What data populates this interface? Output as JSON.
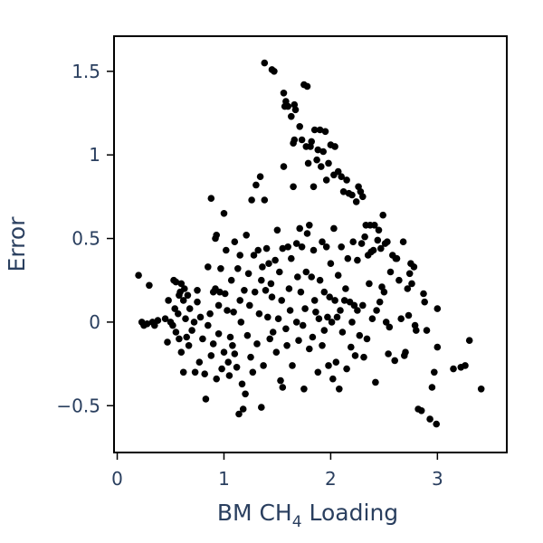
{
  "chart_data": {
    "type": "scatter",
    "title": "",
    "xlabel": "BM CH",
    "xlabel_subscript": "4",
    "xlabel_suffix": " Loading",
    "ylabel": "Error",
    "xlim": [
      -0.03,
      3.65
    ],
    "ylim": [
      -0.78,
      1.71
    ],
    "xticks": [
      0,
      1,
      2,
      3
    ],
    "xtick_labels": [
      "0",
      "1",
      "2",
      "3"
    ],
    "yticks": [
      -0.5,
      0,
      0.5,
      1,
      1.5
    ],
    "ytick_labels": [
      "−0.5",
      "0",
      "0.5",
      "1",
      "1.5"
    ],
    "grid": false,
    "marker_color": "#000000",
    "points": [
      [
        0.2,
        0.28
      ],
      [
        0.23,
        0.0
      ],
      [
        0.25,
        -0.02
      ],
      [
        0.28,
        -0.01
      ],
      [
        0.3,
        0.22
      ],
      [
        0.33,
        0.0
      ],
      [
        0.35,
        -0.02
      ],
      [
        0.38,
        0.01
      ],
      [
        0.45,
        0.02
      ],
      [
        0.47,
        -0.12
      ],
      [
        0.48,
        0.13
      ],
      [
        0.5,
        0.0
      ],
      [
        0.52,
        -0.02
      ],
      [
        0.53,
        0.25
      ],
      [
        0.54,
        0.08
      ],
      [
        0.55,
        0.24
      ],
      [
        0.55,
        -0.06
      ],
      [
        0.57,
        0.05
      ],
      [
        0.58,
        -0.1
      ],
      [
        0.58,
        0.16
      ],
      [
        0.59,
        0.18
      ],
      [
        0.6,
        0.23
      ],
      [
        0.6,
        -0.18
      ],
      [
        0.62,
        0.13
      ],
      [
        0.62,
        -0.3
      ],
      [
        0.63,
        0.2
      ],
      [
        0.64,
        0.02
      ],
      [
        0.65,
        -0.09
      ],
      [
        0.66,
        0.16
      ],
      [
        0.67,
        -0.14
      ],
      [
        0.68,
        0.08
      ],
      [
        0.7,
        -0.05
      ],
      [
        0.72,
        0.0
      ],
      [
        0.73,
        -0.3
      ],
      [
        0.75,
        0.12
      ],
      [
        0.75,
        0.19
      ],
      [
        0.77,
        -0.24
      ],
      [
        0.78,
        0.03
      ],
      [
        0.8,
        -0.1
      ],
      [
        0.82,
        -0.31
      ],
      [
        0.83,
        -0.46
      ],
      [
        0.85,
        0.33
      ],
      [
        0.85,
        -0.02
      ],
      [
        0.87,
        0.05
      ],
      [
        0.88,
        0.74
      ],
      [
        0.88,
        -0.2
      ],
      [
        0.9,
        0.18
      ],
      [
        0.9,
        -0.13
      ],
      [
        0.92,
        0.5
      ],
      [
        0.92,
        0.2
      ],
      [
        0.93,
        0.52
      ],
      [
        0.93,
        -0.34
      ],
      [
        0.95,
        0.1
      ],
      [
        0.95,
        -0.07
      ],
      [
        0.96,
        0.18
      ],
      [
        0.97,
        0.32
      ],
      [
        0.98,
        -0.28
      ],
      [
        1.0,
        -0.18
      ],
      [
        1.0,
        0.65
      ],
      [
        1.01,
        0.17
      ],
      [
        1.02,
        0.43
      ],
      [
        1.03,
        0.07
      ],
      [
        1.04,
        -0.24
      ],
      [
        1.05,
        -0.32
      ],
      [
        1.06,
        -0.09
      ],
      [
        1.07,
        0.25
      ],
      [
        1.08,
        -0.14
      ],
      [
        1.09,
        0.06
      ],
      [
        1.1,
        -0.19
      ],
      [
        1.1,
        0.48
      ],
      [
        1.12,
        -0.27
      ],
      [
        1.13,
        0.32
      ],
      [
        1.14,
        -0.55
      ],
      [
        1.15,
        0.4
      ],
      [
        1.15,
        0.13
      ],
      [
        1.16,
        0.0
      ],
      [
        1.17,
        -0.37
      ],
      [
        1.18,
        -0.52
      ],
      [
        1.19,
        0.19
      ],
      [
        1.2,
        -0.43
      ],
      [
        1.21,
        0.52
      ],
      [
        1.22,
        -0.08
      ],
      [
        1.23,
        0.29
      ],
      [
        1.24,
        0.1
      ],
      [
        1.25,
        -0.21
      ],
      [
        1.26,
        0.73
      ],
      [
        1.27,
        -0.3
      ],
      [
        1.28,
        0.4
      ],
      [
        1.29,
        0.18
      ],
      [
        1.3,
        0.82
      ],
      [
        1.31,
        -0.13
      ],
      [
        1.32,
        0.43
      ],
      [
        1.33,
        0.05
      ],
      [
        1.34,
        0.87
      ],
      [
        1.35,
        0.25
      ],
      [
        1.35,
        -0.51
      ],
      [
        1.36,
        0.33
      ],
      [
        1.37,
        -0.26
      ],
      [
        1.38,
        1.55
      ],
      [
        1.38,
        0.73
      ],
      [
        1.39,
        0.19
      ],
      [
        1.4,
        0.44
      ],
      [
        1.41,
        0.03
      ],
      [
        1.42,
        0.35
      ],
      [
        1.43,
        -0.1
      ],
      [
        1.44,
        0.23
      ],
      [
        1.45,
        1.51
      ],
      [
        1.45,
        0.15
      ],
      [
        1.46,
        -0.06
      ],
      [
        1.47,
        1.5
      ],
      [
        1.48,
        0.37
      ],
      [
        1.49,
        -0.18
      ],
      [
        1.5,
        0.55
      ],
      [
        1.51,
        0.02
      ],
      [
        1.52,
        0.3
      ],
      [
        1.53,
        -0.35
      ],
      [
        1.54,
        0.13
      ],
      [
        1.55,
        -0.39
      ],
      [
        1.55,
        0.44
      ],
      [
        1.56,
        1.37
      ],
      [
        1.56,
        0.93
      ],
      [
        1.57,
        1.29
      ],
      [
        1.58,
        -0.04
      ],
      [
        1.58,
        1.32
      ],
      [
        1.59,
        -0.14
      ],
      [
        1.6,
        1.29
      ],
      [
        1.6,
        0.45
      ],
      [
        1.61,
        0.2
      ],
      [
        1.62,
        0.07
      ],
      [
        1.63,
        0.38
      ],
      [
        1.63,
        1.23
      ],
      [
        1.64,
        -0.26
      ],
      [
        1.65,
        0.81
      ],
      [
        1.65,
        1.07
      ],
      [
        1.66,
        1.09
      ],
      [
        1.66,
        1.3
      ],
      [
        1.67,
        1.27
      ],
      [
        1.68,
        0.47
      ],
      [
        1.68,
        0.0
      ],
      [
        1.69,
        0.27
      ],
      [
        1.7,
        -0.11
      ],
      [
        1.71,
        1.17
      ],
      [
        1.71,
        0.56
      ],
      [
        1.72,
        0.18
      ],
      [
        1.73,
        1.09
      ],
      [
        1.73,
        0.45
      ],
      [
        1.74,
        -0.02
      ],
      [
        1.75,
        1.42
      ],
      [
        1.75,
        -0.4
      ],
      [
        1.76,
        0.08
      ],
      [
        1.77,
        1.05
      ],
      [
        1.77,
        0.3
      ],
      [
        1.78,
        1.41
      ],
      [
        1.78,
        0.53
      ],
      [
        1.79,
        0.95
      ],
      [
        1.8,
        0.58
      ],
      [
        1.8,
        -0.16
      ],
      [
        1.81,
        1.05
      ],
      [
        1.82,
        1.08
      ],
      [
        1.82,
        0.27
      ],
      [
        1.83,
        -0.09
      ],
      [
        1.84,
        0.81
      ],
      [
        1.84,
        0.43
      ],
      [
        1.85,
        1.15
      ],
      [
        1.85,
        0.13
      ],
      [
        1.86,
        0.06
      ],
      [
        1.87,
        0.97
      ],
      [
        1.88,
        -0.3
      ],
      [
        1.88,
        1.03
      ],
      [
        1.89,
        0.02
      ],
      [
        1.9,
        1.15
      ],
      [
        1.9,
        0.25
      ],
      [
        1.91,
        0.93
      ],
      [
        1.92,
        -0.14
      ],
      [
        1.92,
        0.48
      ],
      [
        1.93,
        1.02
      ],
      [
        1.94,
        0.18
      ],
      [
        1.94,
        -0.05
      ],
      [
        1.95,
        1.14
      ],
      [
        1.96,
        0.85
      ],
      [
        1.96,
        0.45
      ],
      [
        1.97,
        0.03
      ],
      [
        1.98,
        -0.26
      ],
      [
        1.98,
        0.95
      ],
      [
        1.99,
        0.15
      ],
      [
        2.0,
        1.06
      ],
      [
        2.0,
        0.35
      ],
      [
        2.01,
        0.0
      ],
      [
        2.02,
        -0.34
      ],
      [
        2.03,
        0.88
      ],
      [
        2.03,
        0.56
      ],
      [
        2.04,
        1.05
      ],
      [
        2.04,
        0.13
      ],
      [
        2.05,
        -0.24
      ],
      [
        2.06,
        0.03
      ],
      [
        2.07,
        0.28
      ],
      [
        2.07,
        0.9
      ],
      [
        2.08,
        -0.4
      ],
      [
        2.09,
        0.07
      ],
      [
        2.1,
        0.87
      ],
      [
        2.1,
        0.45
      ],
      [
        2.11,
        -0.06
      ],
      [
        2.12,
        0.78
      ],
      [
        2.13,
        0.13
      ],
      [
        2.14,
        0.2
      ],
      [
        2.15,
        -0.28
      ],
      [
        2.15,
        0.85
      ],
      [
        2.16,
        0.38
      ],
      [
        2.17,
        0.77
      ],
      [
        2.18,
        0.12
      ],
      [
        2.19,
        -0.15
      ],
      [
        2.2,
        0.76
      ],
      [
        2.2,
        0.0
      ],
      [
        2.21,
        0.48
      ],
      [
        2.22,
        0.1
      ],
      [
        2.23,
        -0.2
      ],
      [
        2.24,
        0.72
      ],
      [
        2.25,
        0.37
      ],
      [
        2.25,
        0.07
      ],
      [
        2.26,
        0.81
      ],
      [
        2.27,
        -0.08
      ],
      [
        2.28,
        0.78
      ],
      [
        2.29,
        0.47
      ],
      [
        2.3,
        0.75
      ],
      [
        2.3,
        0.1
      ],
      [
        2.31,
        -0.21
      ],
      [
        2.32,
        0.51
      ],
      [
        2.33,
        0.58
      ],
      [
        2.34,
        -0.1
      ],
      [
        2.35,
        0.4
      ],
      [
        2.36,
        0.23
      ],
      [
        2.37,
        0.58
      ],
      [
        2.38,
        0.42
      ],
      [
        2.39,
        0.02
      ],
      [
        2.4,
        0.43
      ],
      [
        2.41,
        0.58
      ],
      [
        2.42,
        -0.36
      ],
      [
        2.43,
        0.07
      ],
      [
        2.44,
        0.49
      ],
      [
        2.45,
        0.55
      ],
      [
        2.46,
        0.12
      ],
      [
        2.47,
        0.44
      ],
      [
        2.48,
        0.21
      ],
      [
        2.49,
        0.64
      ],
      [
        2.5,
        0.18
      ],
      [
        2.51,
        0.47
      ],
      [
        2.52,
        0.0
      ],
      [
        2.53,
        0.48
      ],
      [
        2.54,
        -0.19
      ],
      [
        2.55,
        -0.03
      ],
      [
        2.56,
        0.3
      ],
      [
        2.58,
        0.4
      ],
      [
        2.6,
        -0.23
      ],
      [
        2.61,
        0.38
      ],
      [
        2.62,
        0.38
      ],
      [
        2.64,
        0.25
      ],
      [
        2.66,
        0.02
      ],
      [
        2.68,
        0.48
      ],
      [
        2.69,
        -0.2
      ],
      [
        2.7,
        -0.18
      ],
      [
        2.72,
        0.2
      ],
      [
        2.73,
        0.04
      ],
      [
        2.74,
        0.29
      ],
      [
        2.75,
        0.35
      ],
      [
        2.76,
        0.23
      ],
      [
        2.78,
        0.33
      ],
      [
        2.79,
        -0.02
      ],
      [
        2.8,
        -0.05
      ],
      [
        2.82,
        -0.52
      ],
      [
        2.85,
        -0.53
      ],
      [
        2.87,
        0.17
      ],
      [
        2.88,
        0.12
      ],
      [
        2.9,
        -0.05
      ],
      [
        2.93,
        -0.58
      ],
      [
        2.95,
        -0.39
      ],
      [
        2.97,
        -0.3
      ],
      [
        2.99,
        -0.61
      ],
      [
        3.0,
        0.08
      ],
      [
        3.0,
        -0.15
      ],
      [
        3.15,
        -0.28
      ],
      [
        3.22,
        -0.27
      ],
      [
        3.26,
        -0.26
      ],
      [
        3.3,
        -0.11
      ],
      [
        3.41,
        -0.4
      ]
    ]
  }
}
